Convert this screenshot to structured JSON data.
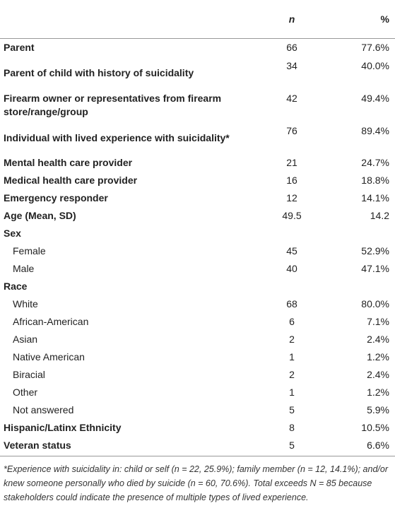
{
  "table": {
    "columns": [
      "n",
      "%"
    ],
    "rows": [
      {
        "label": "Parent",
        "n": "66",
        "pct": "77.6%"
      },
      {
        "label": "Parent of child with history of suicidality",
        "n": "34",
        "pct": "40.0%"
      },
      {
        "label": "Firearm owner or representatives from firearm store/range/group",
        "n": "42",
        "pct": "49.4%"
      },
      {
        "label": "Individual with lived experience with suicidality*",
        "n": "76",
        "pct": "89.4%"
      },
      {
        "label": "Mental health care provider",
        "n": "21",
        "pct": "24.7%"
      },
      {
        "label": "Medical health care provider",
        "n": "16",
        "pct": "18.8%"
      },
      {
        "label": "Emergency responder",
        "n": "12",
        "pct": "14.1%"
      },
      {
        "label": "Age (Mean, SD)",
        "n": "49.5",
        "pct": "14.2"
      },
      {
        "label": "Sex",
        "rows": [
          {
            "label": "Female",
            "n": "45",
            "pct": "52.9%"
          },
          {
            "label": "Male",
            "n": "40",
            "pct": "47.1%"
          }
        ]
      },
      {
        "label": "Race",
        "rows": [
          {
            "label": "White",
            "n": "68",
            "pct": "80.0%"
          },
          {
            "label": "African-American",
            "n": "6",
            "pct": "7.1%"
          },
          {
            "label": "Asian",
            "n": "2",
            "pct": "2.4%"
          },
          {
            "label": "Native American",
            "n": "1",
            "pct": "1.2%"
          },
          {
            "label": "Biracial",
            "n": "2",
            "pct": "2.4%"
          },
          {
            "label": "Other",
            "n": "1",
            "pct": "1.2%"
          },
          {
            "label": "Not answered",
            "n": "5",
            "pct": "5.9%"
          }
        ]
      },
      {
        "label": "Hispanic/Latinx Ethnicity",
        "n": "8",
        "pct": "10.5%"
      },
      {
        "label": "Veteran status",
        "n": "5",
        "pct": "6.6%"
      }
    ],
    "footnote": "*Experience with suicidality in: child or self (n = 22, 25.9%); family member (n = 12, 14.1%); and/or knew someone personally who died by suicide (n = 60, 70.6%). Total exceeds N = 85 because stakeholders could indicate the presence of multiple types of lived experience."
  }
}
